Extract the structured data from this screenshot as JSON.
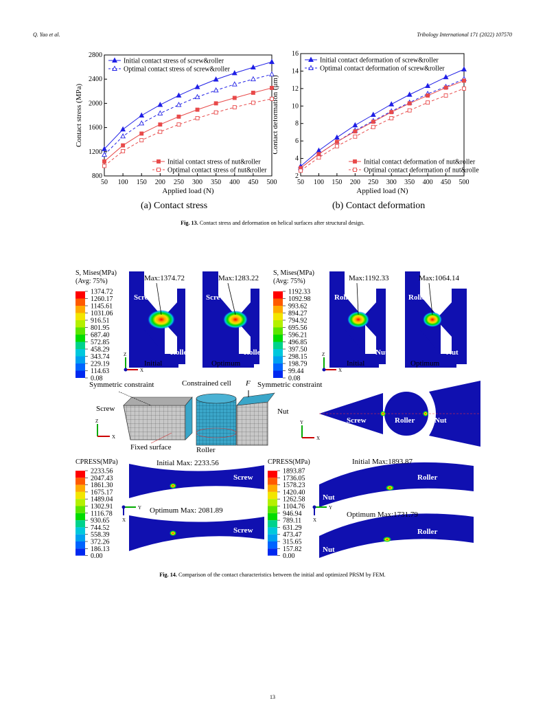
{
  "header": {
    "left": "Q. Yao et al.",
    "right": "Tribology International 171 (2022) 107570"
  },
  "fig13": {
    "caption_label": "Fig. 13.",
    "caption_text": "Contact stress and deformation on helical surfaces after structural design.",
    "sub_a": "(a) Contact stress",
    "sub_b": "(b) Contact deformation"
  },
  "chart_data": [
    {
      "type": "line",
      "title": "",
      "xlabel": "Applied load (N)",
      "ylabel": "Contact stress (MPa)",
      "x": [
        50,
        100,
        150,
        200,
        250,
        300,
        350,
        400,
        450,
        500
      ],
      "xlim": [
        50,
        500
      ],
      "ylim": [
        800,
        2800
      ],
      "yticks": [
        800,
        1200,
        1600,
        2000,
        2400,
        2800
      ],
      "series": [
        {
          "name": "Initial contact stress of screw&roller",
          "color": "#1f1fe6",
          "marker": "filled-triangle",
          "dash": "solid",
          "values": [
            1245,
            1570,
            1800,
            1975,
            2130,
            2270,
            2395,
            2500,
            2595,
            2685
          ]
        },
        {
          "name": "Optimal contact stress of screw&roller",
          "color": "#1f1fe6",
          "marker": "open-triangle",
          "dash": "dashed",
          "values": [
            1150,
            1455,
            1670,
            1835,
            1975,
            2105,
            2215,
            2315,
            2400,
            2480
          ]
        },
        {
          "name": "Initial contact stress of nut&roller",
          "color": "#e84a4a",
          "marker": "filled-square",
          "dash": "solid",
          "values": [
            1040,
            1305,
            1500,
            1650,
            1780,
            1895,
            2000,
            2090,
            2175,
            2255
          ]
        },
        {
          "name": "Optimal contact stress of nut&roller",
          "color": "#e84a4a",
          "marker": "open-square",
          "dash": "dashed",
          "values": [
            965,
            1210,
            1390,
            1530,
            1650,
            1755,
            1850,
            1935,
            2010,
            2075
          ]
        }
      ]
    },
    {
      "type": "line",
      "title": "",
      "xlabel": "Applied load (N)",
      "ylabel": "Contact deformation (μm)",
      "x": [
        50,
        100,
        150,
        200,
        250,
        300,
        350,
        400,
        450,
        500
      ],
      "xlim": [
        50,
        500
      ],
      "ylim": [
        2,
        16
      ],
      "yticks": [
        2,
        4,
        6,
        8,
        10,
        12,
        14,
        16
      ],
      "series": [
        {
          "name": "Initial contact deformation of screw&roller",
          "color": "#1f1fe6",
          "marker": "filled-triangle",
          "dash": "solid",
          "values": [
            3.1,
            4.9,
            6.4,
            7.8,
            9.0,
            10.2,
            11.3,
            12.3,
            13.3,
            14.2
          ]
        },
        {
          "name": "Optimal contact deformation of screw&roller",
          "color": "#1f1fe6",
          "marker": "open-triangle",
          "dash": "dashed",
          "values": [
            2.9,
            4.5,
            5.9,
            7.2,
            8.3,
            9.4,
            10.4,
            11.4,
            12.2,
            13.1
          ]
        },
        {
          "name": "Initial contact deformation of nut&roller",
          "color": "#e84a4a",
          "marker": "filled-square",
          "dash": "solid",
          "values": [
            2.9,
            4.5,
            5.9,
            7.1,
            8.2,
            9.3,
            10.3,
            11.2,
            12.1,
            12.9
          ]
        },
        {
          "name": "Optimal contact deformation of nut&roller",
          "color": "#e84a4a",
          "marker": "open-square",
          "dash": "dashed",
          "values": [
            2.6,
            4.1,
            5.4,
            6.5,
            7.6,
            8.6,
            9.5,
            10.4,
            11.2,
            12.0
          ]
        }
      ]
    }
  ],
  "fig14": {
    "caption_label": "Fig. 14.",
    "caption_text": "Comparison of the contact characteristics between the initial and optimized PRSM by FEM.",
    "legend1": {
      "title1": "S, Mises",
      "unit": "(MPa)",
      "title2": "(Avg: 75%)",
      "values": [
        "1374.72",
        "1260.17",
        "1145.61",
        "1031.06",
        "916.51",
        "801.95",
        "687.40",
        "572.85",
        "458.29",
        "343.74",
        "229.19",
        "114.63",
        "0.08"
      ]
    },
    "legend2": {
      "title1": "S, Mises",
      "unit": "(MPa)",
      "title2": "(Avg: 75%)",
      "values": [
        "1192.33",
        "1092.98",
        "993.62",
        "894.27",
        "794.92",
        "695.56",
        "596.21",
        "496.85",
        "397.50",
        "298.15",
        "198.79",
        "99.44",
        "0.08"
      ]
    },
    "legend3": {
      "title": "CPRESS(MPa)",
      "values": [
        "2233.56",
        "2047.43",
        "1861.30",
        "1675.17",
        "1489.04",
        "1302.91",
        "1116.78",
        "930.65",
        "744.52",
        "558.39",
        "372.26",
        "186.13",
        "0.00"
      ]
    },
    "legend4": {
      "title": "CPRESS(MPa)",
      "values": [
        "1893.87",
        "1736.05",
        "1578.23",
        "1420.40",
        "1262.58",
        "1104.76",
        "946.94",
        "789.11",
        "631.29",
        "473.47",
        "315.65",
        "157.82",
        "0.00"
      ]
    },
    "max1": "Max:1374.72",
    "max2": "Max:1283.22",
    "max3": "Max:1192.33",
    "max4": "Max:1064.14",
    "initial": "Initial",
    "optimum": "Optimum",
    "screw": "Screw",
    "roller": "Roller",
    "nut": "Nut",
    "sym_left": "Symmetric constraint",
    "constrained": "Constrained cell",
    "force": "F",
    "sym_right": "Symmetric constraint",
    "fixed": "Fixed surface",
    "cmax_init_sr": "Initial Max: 2233.56",
    "cmax_opt_sr": "Optimum Max: 2081.89",
    "cmax_init_nr": "Initial Max:1893.87",
    "cmax_opt_nr": "Optimum Max:1731.79",
    "axes": {
      "z": "Z",
      "x": "X",
      "y": "Y"
    }
  },
  "page_number": "13",
  "colorscale": [
    "#ff0000",
    "#ff5a00",
    "#ffaa00",
    "#f2e600",
    "#b4f000",
    "#5ae600",
    "#00dc00",
    "#00d28c",
    "#00c8dc",
    "#00a0f0",
    "#0064ff",
    "#0028f0",
    "#0000c8"
  ]
}
